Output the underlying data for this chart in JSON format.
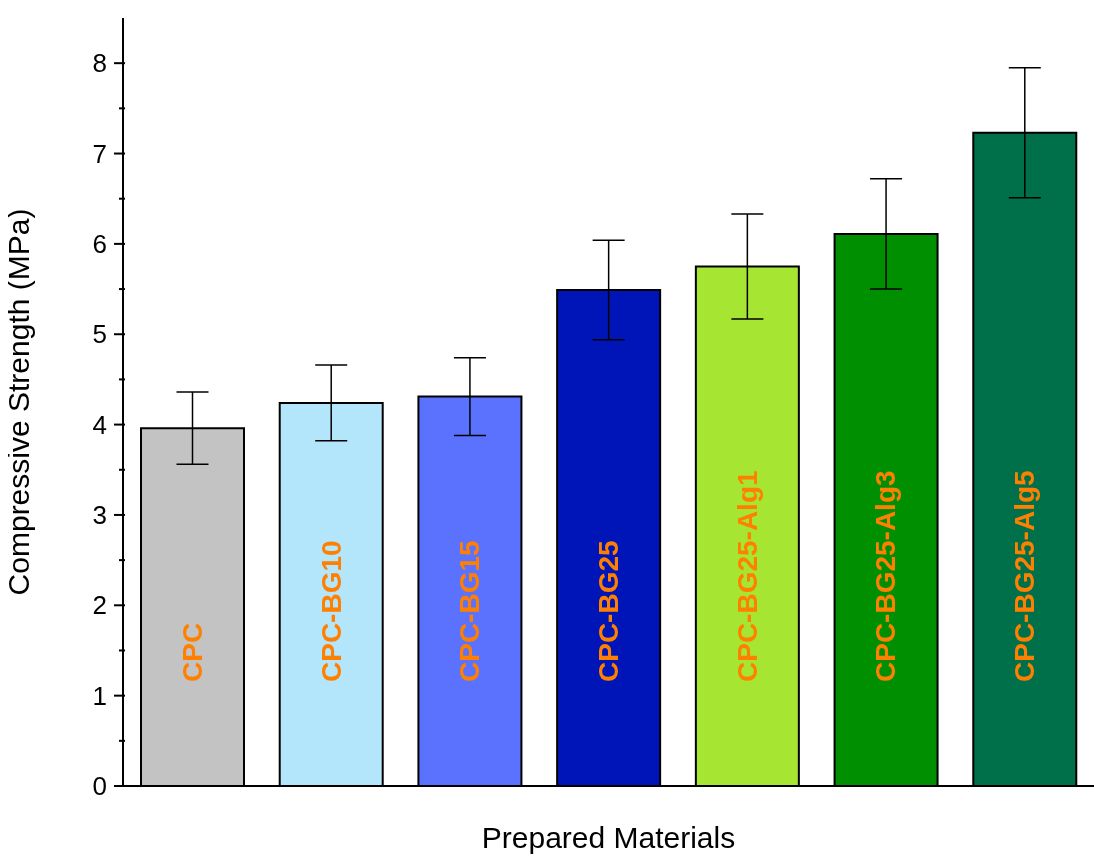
{
  "chart_data": {
    "type": "bar",
    "xlabel": "Prepared Materials",
    "ylabel": "Compressive Strength (MPa)",
    "categories": [
      "CPC",
      "CPC-BG10",
      "CPC-BG15",
      "CPC-BG25",
      "CPC-BG25-Alg1",
      "CPC-BG25-Alg3",
      "CPC-BG25-Alg5"
    ],
    "values": [
      3.96,
      4.24,
      4.31,
      5.49,
      5.75,
      6.11,
      7.23
    ],
    "errors": [
      0.4,
      0.42,
      0.43,
      0.55,
      0.58,
      0.61,
      0.72
    ],
    "colors": [
      "#c3c3c3",
      "#b3e5fb",
      "#5a72fe",
      "#0015b8",
      "#a6e633",
      "#008f00",
      "#00704a"
    ],
    "ylim": [
      0,
      8.5
    ],
    "yticks": [
      0,
      {
        "value": 0.5,
        "label": null
      },
      1,
      {
        "value": 1.5,
        "label": null
      },
      2,
      {
        "value": 2.5,
        "label": null
      },
      3,
      {
        "value": 3.5,
        "label": null
      },
      4,
      {
        "value": 4.5,
        "label": null
      },
      5,
      {
        "value": 5.5,
        "label": null
      },
      6,
      {
        "value": 6.5,
        "label": null
      },
      7,
      {
        "value": 7.5,
        "label": null
      },
      8
    ],
    "grid": false,
    "legend": false
  }
}
